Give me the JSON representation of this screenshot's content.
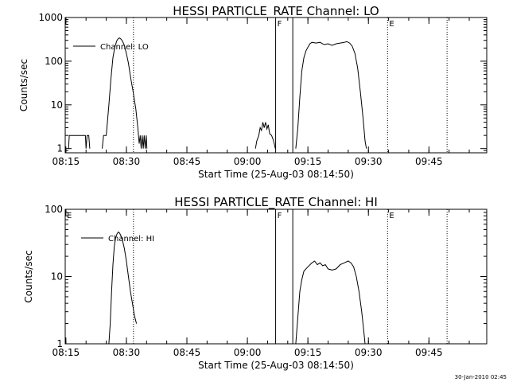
{
  "chart_data": [
    {
      "type": "line",
      "title": "HESSI PARTICLE_RATE Channel: LO",
      "xlabel": "Start Time (25-Aug-03 08:14:50)",
      "ylabel": "Counts/sec",
      "y_scale": "log",
      "xlim": [
        "08:14:50",
        "09:59:20"
      ],
      "ylim": [
        0.8,
        1000
      ],
      "x_tick_labels": [
        "08:15",
        "08:30",
        "08:45",
        "09:00",
        "09:15",
        "09:30",
        "09:45"
      ],
      "y_tick_labels": [
        "1",
        "10",
        "100",
        "1000"
      ],
      "legend": {
        "label": "Channel: LO",
        "placement": "top-left"
      },
      "grid": false,
      "markers": [
        {
          "time": "09:07:00",
          "label": "F",
          "style": "solid"
        },
        {
          "time": "09:11:15",
          "label": "",
          "style": "solid"
        },
        {
          "time": "09:34:45",
          "label": "E",
          "style": "dotted"
        },
        {
          "time": "08:31:45",
          "label": "",
          "style": "dotted"
        },
        {
          "time": "09:49:30",
          "label": "",
          "style": "dotted"
        }
      ],
      "series": [
        {
          "segments": [
            [
              [
                "08:15:40",
                1
              ],
              [
                "08:15:50",
                2
              ],
              [
                "08:19:50",
                2
              ],
              [
                "08:20:00",
                1
              ],
              [
                "08:20:15",
                2
              ],
              [
                "08:20:40",
                2
              ],
              [
                "08:20:55",
                1
              ]
            ],
            [
              [
                "08:24:00",
                1
              ],
              [
                "08:24:20",
                2
              ],
              [
                "08:25:00",
                2
              ],
              [
                "08:25:40",
                10
              ],
              [
                "08:26:10",
                40
              ],
              [
                "08:26:40",
                120
              ],
              [
                "08:27:10",
                220
              ],
              [
                "08:27:40",
                300
              ],
              [
                "08:28:00",
                330
              ],
              [
                "08:28:20",
                340
              ],
              [
                "08:28:40",
                320
              ],
              [
                "08:29:00",
                290
              ],
              [
                "08:29:30",
                230
              ],
              [
                "08:30:00",
                150
              ],
              [
                "08:30:30",
                90
              ],
              [
                "08:31:00",
                45
              ],
              [
                "08:31:40",
                20
              ],
              [
                "08:32:20",
                8
              ],
              [
                "08:32:50",
                3
              ],
              [
                "08:33:10",
                1.3
              ],
              [
                "08:33:25",
                2
              ],
              [
                "08:33:40",
                1
              ],
              [
                "08:33:55",
                2
              ],
              [
                "08:34:10",
                1
              ],
              [
                "08:34:25",
                2
              ],
              [
                "08:34:40",
                1
              ],
              [
                "08:34:55",
                2
              ],
              [
                "08:35:05",
                1
              ]
            ],
            [
              [
                "09:02:00",
                1
              ],
              [
                "09:02:20",
                1.5
              ],
              [
                "09:02:50",
                2
              ],
              [
                "09:03:10",
                3
              ],
              [
                "09:03:30",
                2.6
              ],
              [
                "09:03:50",
                4
              ],
              [
                "09:04:10",
                3
              ],
              [
                "09:04:30",
                4
              ],
              [
                "09:04:50",
                2.8
              ],
              [
                "09:05:10",
                3.5
              ],
              [
                "09:05:30",
                2.2
              ],
              [
                "09:06:00",
                2
              ],
              [
                "09:06:30",
                1.5
              ],
              [
                "09:06:55",
                1
              ]
            ],
            [
              [
                "09:12:00",
                1
              ],
              [
                "09:12:30",
                3
              ],
              [
                "09:13:00",
                15
              ],
              [
                "09:13:30",
                60
              ],
              [
                "09:14:00",
                120
              ],
              [
                "09:14:30",
                170
              ],
              [
                "09:15:00",
                210
              ],
              [
                "09:15:30",
                250
              ],
              [
                "09:16:00",
                270
              ],
              [
                "09:17:00",
                260
              ],
              [
                "09:18:00",
                270
              ],
              [
                "09:19:00",
                240
              ],
              [
                "09:20:00",
                250
              ],
              [
                "09:21:00",
                230
              ],
              [
                "09:22:00",
                250
              ],
              [
                "09:23:00",
                260
              ],
              [
                "09:24:00",
                270
              ],
              [
                "09:24:40",
                280
              ],
              [
                "09:25:20",
                260
              ],
              [
                "09:26:00",
                220
              ],
              [
                "09:26:40",
                150
              ],
              [
                "09:27:20",
                70
              ],
              [
                "09:28:00",
                20
              ],
              [
                "09:28:40",
                5
              ],
              [
                "09:29:10",
                1.5
              ],
              [
                "09:29:30",
                1
              ]
            ]
          ]
        }
      ]
    },
    {
      "type": "line",
      "title": "HESSI PARTICLE_RATE Channel: HI",
      "xlabel": "Start Time (25-Aug-03 08:14:50)",
      "ylabel": "Counts/sec",
      "y_scale": "log",
      "xlim": [
        "08:14:50",
        "09:59:20"
      ],
      "ylim": [
        1,
        100
      ],
      "x_tick_labels": [
        "08:15",
        "08:30",
        "08:45",
        "09:00",
        "09:15",
        "09:30",
        "09:45"
      ],
      "y_tick_labels": [
        "1",
        "10",
        "100"
      ],
      "legend": {
        "label": "Channel: HI",
        "placement": "top-left"
      },
      "grid": false,
      "markers": [
        {
          "time": "08:14:50",
          "label": "E",
          "style": "none"
        },
        {
          "time": "09:07:00",
          "label": "F",
          "style": "solid"
        },
        {
          "time": "09:11:15",
          "label": "",
          "style": "solid"
        },
        {
          "time": "09:34:45",
          "label": "E",
          "style": "dotted"
        },
        {
          "time": "08:31:45",
          "label": "",
          "style": "dotted"
        },
        {
          "time": "09:49:30",
          "label": "",
          "style": "dotted"
        }
      ],
      "series": [
        {
          "segments": [
            [
              [
                "08:25:40",
                1
              ],
              [
                "08:26:00",
                2
              ],
              [
                "08:26:20",
                6
              ],
              [
                "08:26:40",
                15
              ],
              [
                "08:27:00",
                28
              ],
              [
                "08:27:20",
                38
              ],
              [
                "08:27:40",
                43
              ],
              [
                "08:28:00",
                46
              ],
              [
                "08:28:20",
                44
              ],
              [
                "08:28:40",
                40
              ],
              [
                "08:29:00",
                35
              ],
              [
                "08:29:30",
                26
              ],
              [
                "08:30:00",
                17
              ],
              [
                "08:30:30",
                10
              ],
              [
                "08:31:00",
                6
              ],
              [
                "08:31:30",
                4
              ],
              [
                "08:32:00",
                2.6
              ],
              [
                "08:32:30",
                2
              ]
            ],
            [
              [
                "09:12:00",
                1
              ],
              [
                "09:12:30",
                2.5
              ],
              [
                "09:13:00",
                6
              ],
              [
                "09:13:30",
                9
              ],
              [
                "09:14:00",
                12
              ],
              [
                "09:15:00",
                14
              ],
              [
                "09:16:00",
                16
              ],
              [
                "09:16:40",
                17
              ],
              [
                "09:17:20",
                15
              ],
              [
                "09:18:00",
                16
              ],
              [
                "09:18:40",
                14.5
              ],
              [
                "09:19:20",
                15
              ],
              [
                "09:20:00",
                13
              ],
              [
                "09:21:00",
                12.5
              ],
              [
                "09:22:00",
                13
              ],
              [
                "09:23:00",
                15
              ],
              [
                "09:24:00",
                16
              ],
              [
                "09:25:00",
                17
              ],
              [
                "09:25:40",
                16
              ],
              [
                "09:26:20",
                14
              ],
              [
                "09:27:00",
                10
              ],
              [
                "09:27:40",
                6
              ],
              [
                "09:28:20",
                3
              ],
              [
                "09:28:50",
                1.6
              ],
              [
                "09:29:10",
                1
              ]
            ]
          ]
        }
      ]
    }
  ],
  "footer": {
    "timestamp": "30-Jan-2010 02:45"
  }
}
